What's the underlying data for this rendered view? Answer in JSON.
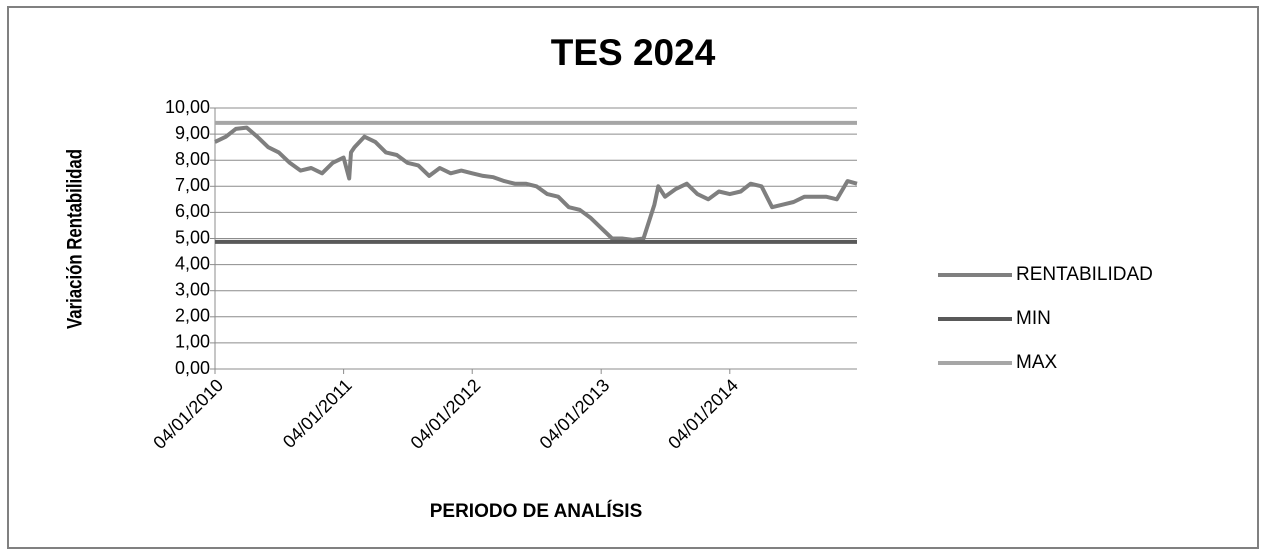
{
  "chart_data": {
    "type": "line",
    "title": "TES 2024",
    "x_label": "PERIODO DE ANALÍSIS",
    "y_label": "Variación Rentabilidad",
    "xlim": [
      "2010-01-04",
      "2014-12-31"
    ],
    "xticks": [
      {
        "value": "2010-01-04",
        "label": "04/01/2010"
      },
      {
        "value": "2011-01-04",
        "label": "04/01/2011"
      },
      {
        "value": "2012-01-04",
        "label": "04/01/2012"
      },
      {
        "value": "2013-01-04",
        "label": "04/01/2013"
      },
      {
        "value": "2014-01-04",
        "label": "04/01/2014"
      }
    ],
    "ylim": [
      0,
      10
    ],
    "yticks": [
      {
        "value": 0,
        "label": "0,00"
      },
      {
        "value": 1,
        "label": "1,00"
      },
      {
        "value": 2,
        "label": "2,00"
      },
      {
        "value": 3,
        "label": "3,00"
      },
      {
        "value": 4,
        "label": "4,00"
      },
      {
        "value": 5,
        "label": "5,00"
      },
      {
        "value": 6,
        "label": "6,00"
      },
      {
        "value": 7,
        "label": "7,00"
      },
      {
        "value": 8,
        "label": "8,00"
      },
      {
        "value": 9,
        "label": "9,00"
      },
      {
        "value": 10,
        "label": "10,00"
      }
    ],
    "grid": true,
    "legend": "right",
    "series": [
      {
        "name": "RENTABILIDAD",
        "color": "#7f7f7f",
        "x": [
          "2010-01-04",
          "2010-02-04",
          "2010-03-04",
          "2010-04-04",
          "2010-05-04",
          "2010-06-04",
          "2010-07-04",
          "2010-08-04",
          "2010-09-04",
          "2010-10-04",
          "2010-11-04",
          "2010-12-04",
          "2011-01-04",
          "2011-01-20",
          "2011-01-25",
          "2011-02-04",
          "2011-03-04",
          "2011-04-04",
          "2011-05-04",
          "2011-06-04",
          "2011-07-04",
          "2011-08-04",
          "2011-09-04",
          "2011-10-04",
          "2011-11-04",
          "2011-12-04",
          "2012-01-04",
          "2012-02-04",
          "2012-03-04",
          "2012-04-04",
          "2012-05-04",
          "2012-06-04",
          "2012-07-04",
          "2012-08-04",
          "2012-09-04",
          "2012-10-04",
          "2012-11-04",
          "2012-12-04",
          "2013-01-04",
          "2013-02-04",
          "2013-03-04",
          "2013-04-04",
          "2013-05-04",
          "2013-06-04",
          "2013-06-15",
          "2013-07-04",
          "2013-08-04",
          "2013-09-04",
          "2013-10-04",
          "2013-11-04",
          "2013-12-04",
          "2014-01-04",
          "2014-02-04",
          "2014-03-04",
          "2014-04-04",
          "2014-05-04",
          "2014-06-04",
          "2014-07-04",
          "2014-08-04",
          "2014-09-04",
          "2014-10-04",
          "2014-11-04",
          "2014-12-04",
          "2014-12-31"
        ],
        "values": [
          8.7,
          8.9,
          9.2,
          9.25,
          8.9,
          8.5,
          8.3,
          7.9,
          7.6,
          7.7,
          7.5,
          7.9,
          8.1,
          7.3,
          8.3,
          8.5,
          8.9,
          8.7,
          8.3,
          8.2,
          7.9,
          7.8,
          7.4,
          7.7,
          7.5,
          7.6,
          7.5,
          7.4,
          7.35,
          7.2,
          7.1,
          7.1,
          7.0,
          6.7,
          6.6,
          6.2,
          6.1,
          5.8,
          5.4,
          5.0,
          5.0,
          4.95,
          5.0,
          6.3,
          7.0,
          6.6,
          6.9,
          7.1,
          6.7,
          6.5,
          6.8,
          6.7,
          6.8,
          7.1,
          7.0,
          6.2,
          6.3,
          6.4,
          6.6,
          6.6,
          6.6,
          6.5,
          7.2,
          7.1
        ]
      },
      {
        "name": "MIN",
        "color": "#595959",
        "x": [
          "2010-01-04",
          "2014-12-31"
        ],
        "values": [
          4.87,
          4.87
        ]
      },
      {
        "name": "MAX",
        "color": "#a6a6a6",
        "x": [
          "2010-01-04",
          "2014-12-31"
        ],
        "values": [
          9.43,
          9.43
        ]
      }
    ]
  }
}
